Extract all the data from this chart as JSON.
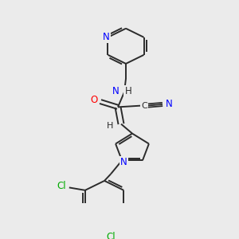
{
  "bg_color": "#ebebeb",
  "bond_color": "#2b2b2b",
  "N_color": "#0000ff",
  "O_color": "#ff0000",
  "Cl_color": "#00aa00",
  "line_width": 1.4,
  "figsize": [
    3.0,
    3.0
  ],
  "dpi": 100,
  "xlim": [
    0,
    300
  ],
  "ylim": [
    0,
    300
  ]
}
